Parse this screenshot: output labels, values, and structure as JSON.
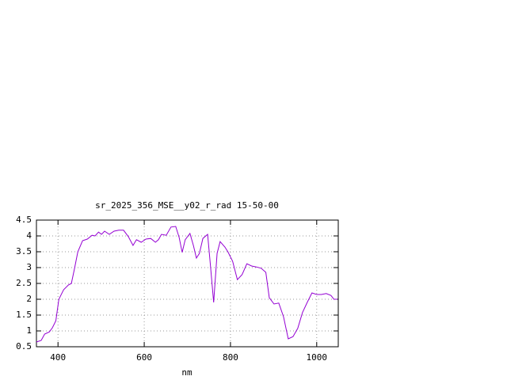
{
  "chart_data": {
    "type": "line",
    "title": "sr_2025_356_MSE__y02_r_rad 15-50-00",
    "x_label": "nm",
    "x": [
      350,
      361,
      369,
      380,
      387,
      395,
      402,
      413,
      424,
      431,
      438,
      446,
      457,
      468,
      479,
      486,
      494,
      501,
      508,
      519,
      530,
      541,
      552,
      563,
      574,
      582,
      593,
      604,
      615,
      626,
      633,
      640,
      651,
      662,
      673,
      681,
      688,
      695,
      706,
      714,
      721,
      728,
      736,
      747,
      754,
      761,
      769,
      776,
      787,
      794,
      805,
      816,
      827,
      838,
      849,
      860,
      871,
      882,
      890,
      901,
      912,
      923,
      934,
      945,
      956,
      967,
      978,
      989,
      1000,
      1011,
      1022,
      1033,
      1040,
      1048
    ],
    "series": [
      {
        "color": "#9400d3",
        "values": [
          0.65,
          0.7,
          0.9,
          0.97,
          1.1,
          1.32,
          2.0,
          2.3,
          2.45,
          2.5,
          2.95,
          3.5,
          3.85,
          3.9,
          4.02,
          4.0,
          4.12,
          4.05,
          4.15,
          4.05,
          4.15,
          4.18,
          4.18,
          3.98,
          3.7,
          3.88,
          3.8,
          3.9,
          3.92,
          3.8,
          3.88,
          4.05,
          4.02,
          4.28,
          4.3,
          3.95,
          3.48,
          3.88,
          4.08,
          3.7,
          3.3,
          3.45,
          3.92,
          4.05,
          3.0,
          1.9,
          3.45,
          3.82,
          3.65,
          3.5,
          3.2,
          2.62,
          2.78,
          3.12,
          3.05,
          3.02,
          2.98,
          2.85,
          2.05,
          1.85,
          1.88,
          1.45,
          0.75,
          0.82,
          1.08,
          1.58,
          1.9,
          2.2,
          2.15,
          2.15,
          2.18,
          2.12,
          2.0,
          2.0
        ]
      }
    ],
    "xlim": [
      350,
      1050
    ],
    "xticks": [
      400,
      600,
      800,
      1000
    ],
    "ylim": [
      0.5,
      4.5
    ],
    "yticks": [
      0.5,
      1,
      1.5,
      2,
      2.5,
      3,
      3.5,
      4,
      4.5
    ],
    "grid": true
  }
}
